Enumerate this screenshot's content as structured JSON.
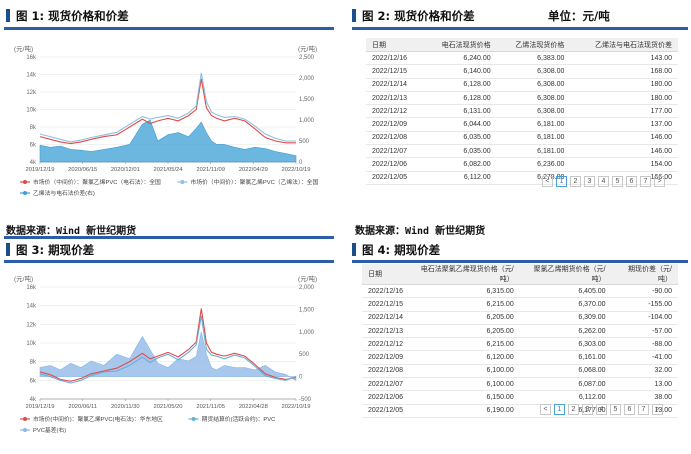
{
  "panel1": {
    "title": "图 1: 现货价格和价差",
    "source": "数据来源：Wind 新世纪期货"
  },
  "panel2": {
    "title": "图 2: 现货价格和价差",
    "unit": "单位：元/吨",
    "headers": [
      "日期",
      "电石法现货价格",
      "乙烯法现货价格",
      "乙烯法与电石法现货价差"
    ],
    "rows": [
      [
        "2022/12/16",
        "6,240.00",
        "6,383.00",
        "143.00"
      ],
      [
        "2022/12/15",
        "6,140.00",
        "6,308.00",
        "168.00"
      ],
      [
        "2022/12/14",
        "6,128.00",
        "6,308.00",
        "180.00"
      ],
      [
        "2022/12/13",
        "6,128.00",
        "6,308.00",
        "180.00"
      ],
      [
        "2022/12/12",
        "6,131.00",
        "6,308.00",
        "177.00"
      ],
      [
        "2022/12/09",
        "6,044.00",
        "6,181.00",
        "137.00"
      ],
      [
        "2022/12/08",
        "6,035.00",
        "6,181.00",
        "146.00"
      ],
      [
        "2022/12/07",
        "6,035.00",
        "6,181.00",
        "146.00"
      ],
      [
        "2022/12/06",
        "6,082.00",
        "6,236.00",
        "154.00"
      ],
      [
        "2022/12/05",
        "6,112.00",
        "6,278.00",
        "166.00"
      ]
    ],
    "pager": [
      "<",
      "1",
      "2",
      "3",
      "4",
      "5",
      "6",
      "7",
      ">"
    ]
  },
  "panel3": {
    "title": "图 3: 期现价差",
    "source": "数据来源：Wind 新世纪期货"
  },
  "panel4": {
    "title": "图 4: 期现价差",
    "headers": [
      "日期",
      "电石法聚氯乙烯现货价格（元/吨）",
      "聚氯乙烯期货价格（元/吨）",
      "期现价差（元/吨）"
    ],
    "rows": [
      [
        "2022/12/16",
        "6,315.00",
        "6,405.00",
        "-90.00"
      ],
      [
        "2022/12/15",
        "6,215.00",
        "6,370.00",
        "-155.00"
      ],
      [
        "2022/12/14",
        "6,205.00",
        "6,309.00",
        "-104.00"
      ],
      [
        "2022/12/13",
        "6,205.00",
        "6,262.00",
        "-57.00"
      ],
      [
        "2022/12/12",
        "6,215.00",
        "6,303.00",
        "-88.00"
      ],
      [
        "2022/12/09",
        "6,120.00",
        "6,161.00",
        "-41.00"
      ],
      [
        "2022/12/08",
        "6,100.00",
        "6,068.00",
        "32.00"
      ],
      [
        "2022/12/07",
        "6,100.00",
        "6,087.00",
        "13.00"
      ],
      [
        "2022/12/06",
        "6,150.00",
        "6,112.00",
        "38.00"
      ],
      [
        "2022/12/05",
        "6,190.00",
        "6,177.00",
        "13.00"
      ]
    ],
    "pager": [
      "<",
      "1",
      "2",
      "3",
      "4",
      "5",
      "6",
      "7",
      ">"
    ]
  },
  "chart_data": [
    {
      "type": "line",
      "left_unit": "(元/吨)",
      "right_unit": "(元/吨)",
      "left_ticks": [
        "16k",
        "14k",
        "12k",
        "10k",
        "8k",
        "6k",
        "4k"
      ],
      "right_ticks": [
        "2,500",
        "2,000",
        "1,500",
        "1,000",
        "500",
        "0"
      ],
      "x_ticks": [
        "2019/12/19",
        "2020/06/15",
        "2020/12/01",
        "2021/05/24",
        "2021/11/09",
        "2022/04/29",
        "2022/10/19"
      ],
      "ylim_left": [
        4000,
        16000
      ],
      "ylim_right": [
        0,
        2500
      ],
      "x": [
        0,
        0.04,
        0.08,
        0.12,
        0.16,
        0.2,
        0.25,
        0.3,
        0.35,
        0.4,
        0.43,
        0.46,
        0.5,
        0.54,
        0.58,
        0.61,
        0.63,
        0.65,
        0.67,
        0.69,
        0.72,
        0.76,
        0.8,
        0.84,
        0.88,
        0.92,
        0.96,
        1.0
      ],
      "series": [
        {
          "name": "市场价（中间价）：聚氯乙烯PVC（电石法）：全国",
          "axis": "left",
          "color": "#e04a4a",
          "values": [
            6900,
            6600,
            6300,
            6100,
            6300,
            6600,
            6900,
            7100,
            8000,
            8900,
            8400,
            8700,
            9000,
            8700,
            9300,
            10000,
            13500,
            10200,
            9300,
            9000,
            8700,
            9000,
            8700,
            7800,
            6800,
            6400,
            6200,
            6200
          ]
        },
        {
          "name": "市场价（中间价）：聚氯乙烯PVC（乙烯法）：全国",
          "axis": "left",
          "color": "#8fbfe0",
          "values": [
            7200,
            6900,
            6600,
            6300,
            6500,
            6800,
            7100,
            7400,
            8300,
            9200,
            8900,
            9100,
            9300,
            9000,
            9600,
            10400,
            14200,
            10900,
            9700,
            9400,
            9100,
            9200,
            8900,
            8100,
            7200,
            6700,
            6400,
            6400
          ]
        },
        {
          "name": "乙烯法与电石法价差(右)",
          "axis": "right",
          "color": "#3a9fd6",
          "fill": true,
          "values": [
            400,
            350,
            380,
            300,
            280,
            250,
            300,
            350,
            420,
            900,
            1000,
            500,
            650,
            700,
            600,
            800,
            950,
            700,
            500,
            420,
            420,
            350,
            300,
            350,
            320,
            250,
            200,
            150
          ]
        }
      ]
    },
    {
      "type": "line",
      "left_unit": "(元/吨)",
      "right_unit": "(元/吨)",
      "left_ticks": [
        "16k",
        "14k",
        "12k",
        "10k",
        "8k",
        "6k",
        "4k"
      ],
      "right_ticks": [
        "2,000",
        "1,500",
        "1,000",
        "500",
        "0",
        "-500"
      ],
      "x_ticks": [
        "2019/12/19",
        "2020/06/11",
        "2020/11/30",
        "2021/05/20",
        "2021/11/05",
        "2022/04/28",
        "2022/10/19"
      ],
      "ylim_left": [
        4000,
        16000
      ],
      "ylim_right": [
        -500,
        2000
      ],
      "x": [
        0,
        0.04,
        0.08,
        0.12,
        0.16,
        0.2,
        0.25,
        0.3,
        0.35,
        0.4,
        0.43,
        0.46,
        0.5,
        0.54,
        0.58,
        0.61,
        0.63,
        0.65,
        0.67,
        0.69,
        0.72,
        0.76,
        0.8,
        0.84,
        0.88,
        0.92,
        0.96,
        1.0
      ],
      "series": [
        {
          "name": "市场价(中间价)：聚氯乙烯PVC(电石法)：华东地区",
          "axis": "left",
          "color": "#e04a4a",
          "values": [
            6900,
            6600,
            6100,
            5900,
            6200,
            6700,
            7000,
            7300,
            8000,
            8900,
            8300,
            8600,
            9000,
            8500,
            9300,
            10100,
            13700,
            10000,
            9000,
            8800,
            8600,
            8900,
            8600,
            7700,
            6700,
            6300,
            6100,
            6300
          ]
        },
        {
          "name": "期货结算价(活跃合约)：PVC",
          "axis": "left",
          "color": "#6aaed6",
          "values": [
            6700,
            6400,
            6000,
            5700,
            6000,
            6500,
            6900,
            7000,
            7600,
            8500,
            7900,
            8400,
            8800,
            8200,
            9000,
            9800,
            12900,
            9300,
            8700,
            8600,
            8300,
            8700,
            8400,
            7500,
            6500,
            6200,
            6000,
            6400
          ]
        },
        {
          "name": "PVC基差(右)",
          "axis": "right",
          "color": "#8ab6e6",
          "fill": true,
          "values": [
            200,
            250,
            150,
            300,
            200,
            350,
            250,
            500,
            400,
            900,
            600,
            300,
            200,
            400,
            350,
            450,
            1000,
            500,
            200,
            150,
            250,
            200,
            200,
            150,
            250,
            100,
            50,
            -90
          ]
        }
      ]
    }
  ]
}
